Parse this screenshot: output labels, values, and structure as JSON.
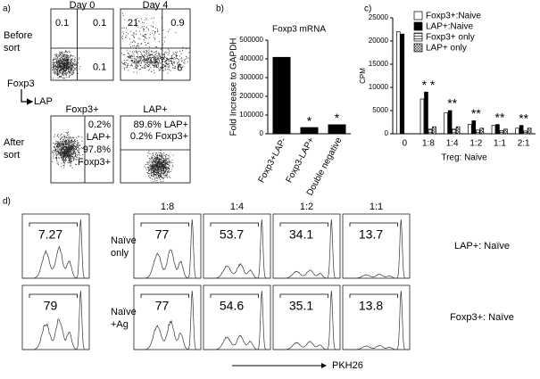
{
  "panel_a": {
    "label": "a)",
    "day_titles": [
      "Day 0",
      "Day 4"
    ],
    "before_label": [
      "Before",
      "sort"
    ],
    "after_label": [
      "After",
      "sort"
    ],
    "y_axis": "Foxp3",
    "x_axis": "LAP",
    "before_quadrants": [
      [
        "0.1",
        "0.1",
        "0.1"
      ],
      [
        "21",
        "0.9",
        "6"
      ]
    ],
    "after_titles": [
      "Foxp3+",
      "LAP+"
    ],
    "after_text": [
      [
        "0.2%",
        "LAP+",
        "97.8%",
        "Foxp3+"
      ],
      [
        "89.6% LAP+",
        "0.2% Foxp3+"
      ]
    ]
  },
  "chart_data": [
    {
      "panel": "b)",
      "type": "bar",
      "title": "Foxp3 mRNA",
      "ylabel": "Fold Increase to GAPDH",
      "categories": [
        "Foxp3+LAP-",
        "Foxp3-LAP+",
        "Double negative"
      ],
      "values": [
        410000,
        35000,
        50000
      ],
      "value_annotations": [
        null,
        "*",
        "*"
      ],
      "color": "#000000",
      "ylim": [
        0,
        500000
      ],
      "yticks": [
        0,
        100000,
        200000,
        300000,
        400000,
        500000
      ]
    },
    {
      "panel": "c)",
      "type": "grouped_bar",
      "ylabel": "CPM",
      "xlabel": "Treg: Naive",
      "categories": [
        "0",
        "1:8",
        "1:4",
        "1:2",
        "1:1",
        "2:1"
      ],
      "series": [
        {
          "name": "Foxp3+:Naive",
          "color": "#ffffff",
          "pattern": "solid",
          "values": [
            22000,
            7500,
            4500,
            2000,
            1800,
            1200
          ]
        },
        {
          "name": "LAP+:Naive",
          "color": "#000000",
          "pattern": "solid",
          "values": [
            21500,
            9000,
            5000,
            2800,
            2000,
            1800
          ]
        },
        {
          "name": "Foxp3+ only",
          "color": "#888888",
          "pattern": "stripes",
          "values": [
            null,
            1000,
            1000,
            800,
            700,
            600
          ]
        },
        {
          "name": "LAP+ only",
          "color": "#555555",
          "pattern": "checks",
          "values": [
            null,
            1500,
            1500,
            1200,
            1000,
            1200
          ]
        }
      ],
      "annotations": [
        null,
        "* *",
        "**",
        "**",
        "**",
        "**"
      ],
      "ylim": [
        0,
        25000
      ],
      "yticks": [
        0,
        5000,
        10000,
        15000,
        20000,
        25000
      ]
    }
  ],
  "panel_d": {
    "label": "d)",
    "columns": [
      "1:8",
      "1:4",
      "1:2",
      "1:1"
    ],
    "rows": [
      {
        "left": [
          "Naïve",
          "only"
        ],
        "right": "LAP+: Naïve",
        "values": [
          "7.27",
          "77",
          "53.7",
          "34.1",
          "13.7"
        ]
      },
      {
        "left": [
          "Naïve",
          "+Ag"
        ],
        "right": "Foxp3+: Naïve",
        "values": [
          "79",
          "77",
          "54.6",
          "35.1",
          "13.8"
        ]
      }
    ],
    "x_axis": "PKH26"
  }
}
